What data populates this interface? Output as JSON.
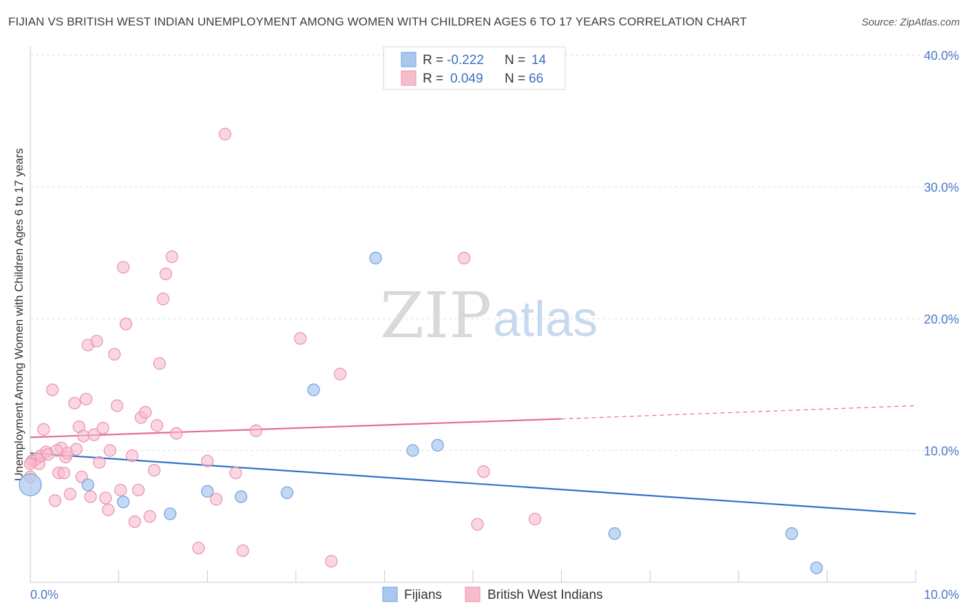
{
  "title": "FIJIAN VS BRITISH WEST INDIAN UNEMPLOYMENT AMONG WOMEN WITH CHILDREN AGES 6 TO 17 YEARS CORRELATION CHART",
  "source": "Source: ZipAtlas.com",
  "watermark": {
    "zip": "ZIP",
    "atlas": "atlas"
  },
  "colors": {
    "fijians_fill": "#aac8ef",
    "fijians_stroke": "#6f9fe0",
    "fijians_line": "#2f6fcb",
    "bwi_fill": "#f7bccc",
    "bwi_stroke": "#eb8fab",
    "bwi_line": "#e46a94",
    "grid": "#dddddd",
    "tick_label": "#4a78c8"
  },
  "legend": {
    "rows": [
      {
        "r_label": "R =",
        "r_value": "-0.222",
        "n_label": "N =",
        "n_value": "14"
      },
      {
        "r_label": "R =",
        "r_value": "0.049",
        "n_label": "N =",
        "n_value": "66"
      }
    ]
  },
  "chart_data": {
    "type": "scatter",
    "ylabel": "Unemployment Among Women with Children Ages 6 to 17 years",
    "xlim": [
      0,
      10
    ],
    "ylim": [
      0,
      40
    ],
    "x_ticks": [
      0,
      10
    ],
    "x_tick_labels": [
      "0.0%",
      "10.0%"
    ],
    "y_ticks": [
      10,
      20,
      30,
      40
    ],
    "y_tick_labels": [
      "10.0%",
      "20.0%",
      "30.0%",
      "40.0%"
    ],
    "grid": true,
    "legend_position": "top-center and bottom",
    "series": [
      {
        "name": "Fijians",
        "points": [
          [
            0.0,
            7.4
          ],
          [
            0.65,
            7.4
          ],
          [
            1.05,
            6.1
          ],
          [
            1.58,
            5.2
          ],
          [
            2.0,
            6.9
          ],
          [
            2.38,
            6.5
          ],
          [
            2.9,
            6.8
          ],
          [
            3.2,
            14.6
          ],
          [
            3.9,
            24.6
          ],
          [
            4.32,
            10.0
          ],
          [
            4.6,
            10.4
          ],
          [
            6.6,
            3.7
          ],
          [
            8.6,
            3.7
          ],
          [
            8.88,
            1.1
          ]
        ],
        "trend": {
          "x": [
            0,
            10
          ],
          "y": [
            9.8,
            5.2
          ]
        }
      },
      {
        "name": "British West Indians",
        "points": [
          [
            0.02,
            9.2
          ],
          [
            0.05,
            9.3
          ],
          [
            0.08,
            9.4
          ],
          [
            0.1,
            9.0
          ],
          [
            0.12,
            9.6
          ],
          [
            0.15,
            11.6
          ],
          [
            0.18,
            9.9
          ],
          [
            0.2,
            9.7
          ],
          [
            0.25,
            14.6
          ],
          [
            0.28,
            6.2
          ],
          [
            0.32,
            8.3
          ],
          [
            0.35,
            10.2
          ],
          [
            0.38,
            8.3
          ],
          [
            0.4,
            9.5
          ],
          [
            0.42,
            9.8
          ],
          [
            0.45,
            6.7
          ],
          [
            0.5,
            13.6
          ],
          [
            0.52,
            10.1
          ],
          [
            0.55,
            11.8
          ],
          [
            0.58,
            8.0
          ],
          [
            0.6,
            11.1
          ],
          [
            0.63,
            13.9
          ],
          [
            0.65,
            18.0
          ],
          [
            0.68,
            6.5
          ],
          [
            0.72,
            11.2
          ],
          [
            0.75,
            18.3
          ],
          [
            0.78,
            9.1
          ],
          [
            0.82,
            11.7
          ],
          [
            0.85,
            6.4
          ],
          [
            0.88,
            5.5
          ],
          [
            0.9,
            10.0
          ],
          [
            0.95,
            17.3
          ],
          [
            0.98,
            13.4
          ],
          [
            1.02,
            7.0
          ],
          [
            1.05,
            23.9
          ],
          [
            1.08,
            19.6
          ],
          [
            1.15,
            9.6
          ],
          [
            1.18,
            4.6
          ],
          [
            1.22,
            7.0
          ],
          [
            1.25,
            12.5
          ],
          [
            1.3,
            12.9
          ],
          [
            1.35,
            5.0
          ],
          [
            1.4,
            8.5
          ],
          [
            1.43,
            11.9
          ],
          [
            1.46,
            16.6
          ],
          [
            1.5,
            21.5
          ],
          [
            1.53,
            23.4
          ],
          [
            1.6,
            24.7
          ],
          [
            1.65,
            11.3
          ],
          [
            1.9,
            2.6
          ],
          [
            2.0,
            9.2
          ],
          [
            2.1,
            6.3
          ],
          [
            2.2,
            34.0
          ],
          [
            2.32,
            8.3
          ],
          [
            2.4,
            2.4
          ],
          [
            2.55,
            11.5
          ],
          [
            3.05,
            18.5
          ],
          [
            3.4,
            1.6
          ],
          [
            3.5,
            15.8
          ],
          [
            4.9,
            24.6
          ],
          [
            5.05,
            4.4
          ],
          [
            5.12,
            8.4
          ],
          [
            5.7,
            4.8
          ],
          [
            0.0,
            8.0
          ],
          [
            0.0,
            9.0
          ],
          [
            0.3,
            10.0
          ]
        ],
        "trend": {
          "x": [
            0,
            6.0
          ],
          "y": [
            11.0,
            12.4
          ]
        },
        "trend_extension": {
          "x": [
            6.0,
            10.0
          ],
          "y": [
            12.4,
            13.4
          ]
        }
      }
    ]
  }
}
